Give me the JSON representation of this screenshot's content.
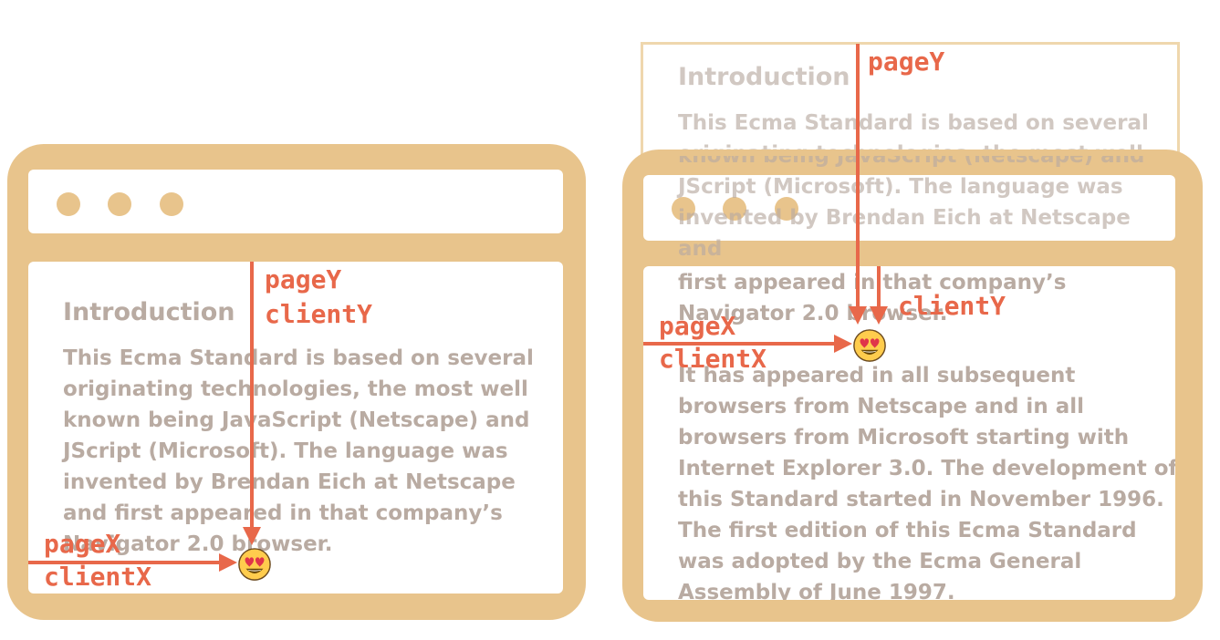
{
  "left_window": {
    "heading": "Introduction",
    "body": "This Ecma Standard is based on several originating technologies, the most well known being JavaScript (Netscape) and JScript (Microsoft). The language was invented by Brendan Eich at Netscape and first appeared in that company’s Navigator 2.0 browser.",
    "labels": {
      "pageY": "pageY",
      "clientY": "clientY",
      "pageX": "pageX",
      "clientX": "clientX"
    }
  },
  "right_window": {
    "heading": "Introduction",
    "body_top": "This Ecma Standard is based on several originating technologies, the most well known being JavaScript (Netscape) and JScript (Microsoft). The language was invented by Brendan Eich at Netscape and",
    "body_visible": "first appeared in that company’s Navigator 2.0 browser.",
    "body_rest": "It has appeared in all subsequent browsers from Netscape and in all browsers from Microsoft starting with Internet Explorer 3.0. The development of this Standard started in November 1996.",
    "body_more": "The first edition of this Ecma Standard was adopted by the Ecma General Assembly of June 1997.",
    "labels": {
      "pageY": "pageY",
      "clientY": "clientY",
      "pageX": "pageX",
      "clientX": "clientX"
    }
  },
  "colors": {
    "frame": "#e8c48c",
    "arrow": "#e8684a",
    "text": "#b9aba2"
  },
  "icons": {
    "cursor": "heart-eyes-emoji-icon"
  }
}
